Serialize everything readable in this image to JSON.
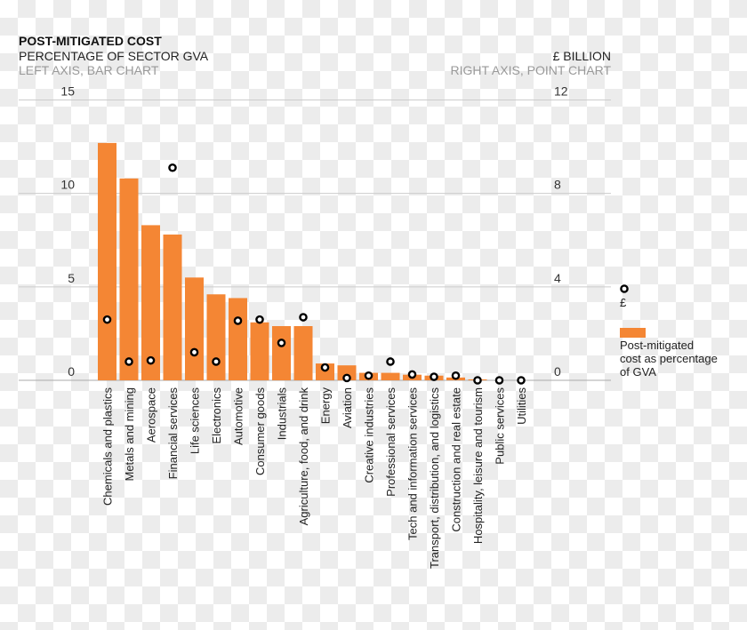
{
  "header": {
    "title": "POST-MITIGATED COST",
    "subtitle": "PERCENTAGE OF SECTOR GVA",
    "left_note": "LEFT AXIS, BAR CHART",
    "right_unit": "£ BILLION",
    "right_note": "RIGHT AXIS, POINT CHART"
  },
  "legend": {
    "points_label": "£",
    "bars_label_lines": [
      "Post-mitigated",
      "cost as percentage",
      "of GVA"
    ]
  },
  "colors": {
    "bar": "#f48634",
    "point": "#000000",
    "grid": "#cccccc",
    "axis_text": "#333333"
  },
  "chart_data": {
    "type": "bar",
    "title": "POST-MITIGATED COST",
    "categories": [
      "Chemicals and plastics",
      "Metals and mining",
      "Aerospace",
      "Financial services",
      "Life sciences",
      "Electronics",
      "Automotive",
      "Consumer goods",
      "Industrials",
      "Agriculture, food, and drink",
      "Energy",
      "Aviation",
      "Creative industries",
      "Professional services",
      "Tech and information services",
      "Transport, distribution, and logistics",
      "Construction and real estate",
      "Hospitality, leisure and tourism",
      "Public services",
      "Utilities"
    ],
    "series": [
      {
        "name": "Post-mitigated cost as percentage of GVA",
        "axis": "left",
        "type": "bar",
        "values": [
          12.7,
          10.8,
          8.3,
          7.8,
          5.5,
          4.6,
          4.4,
          3.1,
          2.9,
          2.9,
          0.9,
          0.8,
          0.4,
          0.4,
          0.3,
          0.25,
          0.15,
          0.05,
          0,
          0
        ]
      },
      {
        "name": "£",
        "axis": "right",
        "type": "scatter",
        "values": [
          2.6,
          0.8,
          0.85,
          9.1,
          1.2,
          0.8,
          2.55,
          2.6,
          1.6,
          2.7,
          0.55,
          0.1,
          0.2,
          0.8,
          0.25,
          0.15,
          0.2,
          0,
          0,
          0
        ]
      }
    ],
    "left_axis": {
      "label": "PERCENTAGE OF SECTOR GVA",
      "ylim": [
        0,
        15
      ],
      "ticks": [
        "0",
        "5",
        "10",
        "15"
      ]
    },
    "right_axis": {
      "label": "£ BILLION",
      "ylim": [
        0,
        12
      ],
      "ticks": [
        "0",
        "4",
        "8",
        "12"
      ]
    },
    "grid": true,
    "legend_position": "right"
  }
}
